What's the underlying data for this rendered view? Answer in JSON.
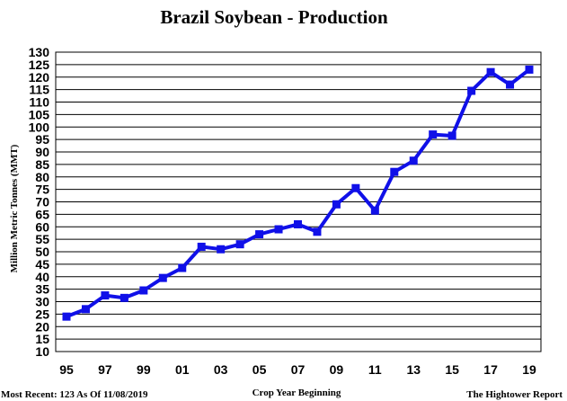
{
  "chart_data": {
    "type": "line",
    "title": "Brazil Soybean - Production",
    "xlabel": "Crop Year Beginning",
    "ylabel": "Million Metric Tonnes (MMT)",
    "ylim": [
      10,
      130
    ],
    "y_ticks": [
      "10",
      "15",
      "20",
      "25",
      "30",
      "35",
      "40",
      "45",
      "50",
      "55",
      "60",
      "65",
      "70",
      "75",
      "80",
      "85",
      "90",
      "95",
      "100",
      "105",
      "110",
      "115",
      "120",
      "125",
      "130"
    ],
    "x_ticks": [
      "95",
      "97",
      "99",
      "01",
      "03",
      "05",
      "07",
      "09",
      "11",
      "13",
      "15",
      "17",
      "19"
    ],
    "x": [
      "95",
      "96",
      "97",
      "98",
      "99",
      "00",
      "01",
      "02",
      "03",
      "04",
      "05",
      "06",
      "07",
      "08",
      "09",
      "10",
      "11",
      "12",
      "13",
      "14",
      "15",
      "16",
      "17",
      "18",
      "19"
    ],
    "series": [
      {
        "values": [
          24,
          27,
          32.5,
          31.5,
          34.5,
          39.5,
          43.5,
          52,
          51,
          53,
          57,
          59,
          61,
          58,
          69,
          75.5,
          66.5,
          82,
          86.5,
          97,
          96.5,
          114.5,
          122,
          117,
          123
        ]
      }
    ],
    "grid": "horizontal",
    "line_color": "#1010e8"
  },
  "footer": {
    "left": "Most Recent: 123 As Of 11/08/2019",
    "right": "The Hightower Report"
  }
}
